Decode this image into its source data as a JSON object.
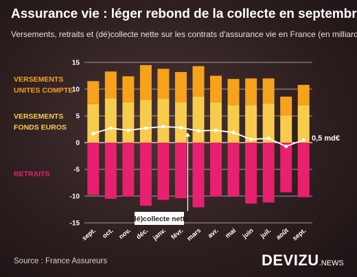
{
  "title": "Assurance vie : léger rebond de la collecte en septembre",
  "subtitle": "Versements, retraits et (dé)collecte nette sur les contrats d'assurance vie en France (en milliards €)",
  "source": "Source : France Assureurs",
  "brand": {
    "name": "DEVIZU",
    "suffix": ".NEWS"
  },
  "colors": {
    "uc": "#F7A21B",
    "euros": "#F7CC4D",
    "retraits": "#E8206F",
    "net": "#ffffff",
    "grid": "#ffffff"
  },
  "legend": {
    "uc": [
      "VERSEMENTS",
      "UNITES COMPTE"
    ],
    "euros": [
      "VERSEMENTS",
      "FONDS EUROS"
    ],
    "retraits": "RETRAITS"
  },
  "annotations": {
    "net_label": "(dé)collecte nette",
    "last_value": "0,5 md€"
  },
  "chart_data": {
    "type": "bar",
    "categories": [
      "sept.",
      "oct.",
      "nov.",
      "déc.",
      "janv.",
      "févr.",
      "mars",
      "avr.",
      "mai",
      "juin",
      "juil.",
      "août",
      "sept."
    ],
    "series": [
      {
        "key": "euros",
        "values": [
          7.2,
          8.3,
          7.5,
          8.0,
          8.2,
          7.5,
          8.6,
          7.5,
          7.0,
          7.0,
          7.3,
          5.1,
          7.0
        ]
      },
      {
        "key": "uc",
        "values": [
          4.3,
          5.0,
          4.9,
          6.5,
          5.6,
          5.7,
          5.7,
          5.0,
          4.9,
          5.0,
          4.7,
          3.5,
          3.8
        ]
      },
      {
        "key": "retraits",
        "values": [
          -9.8,
          -10.5,
          -10.1,
          -11.8,
          -10.7,
          -10.4,
          -12.1,
          -10.1,
          -10.0,
          -11.4,
          -11.2,
          -9.3,
          -10.2
        ]
      },
      {
        "key": "net",
        "type": "line",
        "values": [
          1.7,
          2.7,
          2.3,
          2.7,
          3.0,
          2.8,
          2.2,
          2.3,
          1.9,
          0.6,
          0.8,
          -0.7,
          0.5
        ]
      }
    ],
    "ylim": [
      -15,
      15
    ],
    "yticks": [
      -15,
      -10,
      -5,
      0,
      5,
      10,
      15
    ],
    "grid": true
  }
}
